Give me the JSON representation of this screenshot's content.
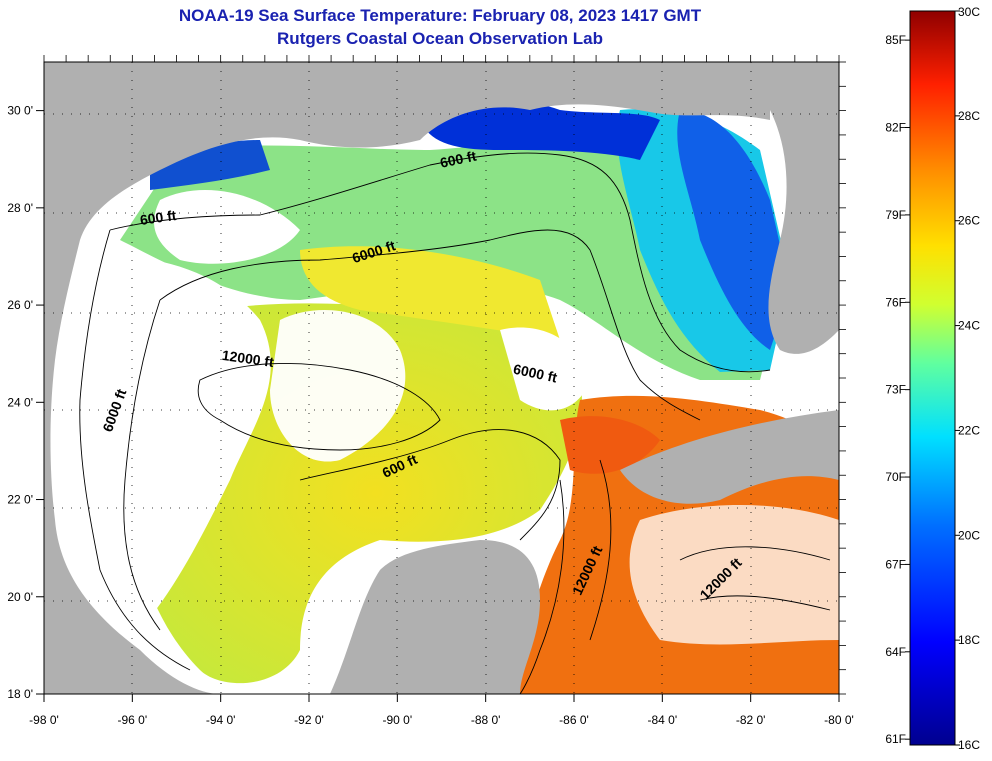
{
  "header": {
    "title": "NOAA-19 Sea Surface Temperature:  February 08, 2023 1417 GMT",
    "subtitle": "Rutgers Coastal Ocean Observation Lab"
  },
  "map": {
    "lon_ticks": [
      {
        "label": "-98 0'",
        "value": -98
      },
      {
        "label": "-96 0'",
        "value": -96
      },
      {
        "label": "-94 0'",
        "value": -94
      },
      {
        "label": "-92 0'",
        "value": -92
      },
      {
        "label": "-90 0'",
        "value": -90
      },
      {
        "label": "-88 0'",
        "value": -88
      },
      {
        "label": "-86 0'",
        "value": -86
      },
      {
        "label": "-84 0'",
        "value": -84
      },
      {
        "label": "-82 0'",
        "value": -82
      },
      {
        "label": "-80 0'",
        "value": -80
      }
    ],
    "lat_ticks": [
      {
        "label": "18 0'",
        "value": 18
      },
      {
        "label": "20 0'",
        "value": 20
      },
      {
        "label": "22 0'",
        "value": 22
      },
      {
        "label": "24 0'",
        "value": 24
      },
      {
        "label": "26 0'",
        "value": 26
      },
      {
        "label": "28 0'",
        "value": 28
      },
      {
        "label": "30 0'",
        "value": 30
      }
    ],
    "lon_range": [
      -98,
      -80
    ],
    "lat_range": [
      18,
      31
    ],
    "contour_labels": [
      {
        "text": "600 ft",
        "lon": -95.4,
        "lat": 27.7
      },
      {
        "text": "600 ft",
        "lon": -88.6,
        "lat": 28.9
      },
      {
        "text": "6000 ft",
        "lon": -90.5,
        "lat": 27.0
      },
      {
        "text": "12000 ft",
        "lon": -93.4,
        "lat": 24.8
      },
      {
        "text": "6000 ft",
        "lon": -86.9,
        "lat": 24.5
      },
      {
        "text": "6000 ft",
        "lon": -96.3,
        "lat": 23.8
      },
      {
        "text": "600 ft",
        "lon": -89.9,
        "lat": 22.6
      },
      {
        "text": "12000 ft",
        "lon": -85.6,
        "lat": 20.5
      },
      {
        "text": "12000 ft",
        "lon": -82.6,
        "lat": 20.3
      }
    ]
  },
  "colorbar": {
    "celsius": [
      {
        "label": "30C",
        "value": 30
      },
      {
        "label": "28C",
        "value": 28
      },
      {
        "label": "26C",
        "value": 26
      },
      {
        "label": "24C",
        "value": 24
      },
      {
        "label": "22C",
        "value": 22
      },
      {
        "label": "20C",
        "value": 20
      },
      {
        "label": "18C",
        "value": 18
      },
      {
        "label": "16C",
        "value": 16
      }
    ],
    "fahrenheit": [
      {
        "label": "85F",
        "value": 85
      },
      {
        "label": "82F",
        "value": 82
      },
      {
        "label": "79F",
        "value": 79
      },
      {
        "label": "76F",
        "value": 76
      },
      {
        "label": "73F",
        "value": 73
      },
      {
        "label": "70F",
        "value": 70
      },
      {
        "label": "67F",
        "value": 67
      },
      {
        "label": "64F",
        "value": 64
      },
      {
        "label": "61F",
        "value": 61
      }
    ],
    "range_c": [
      16,
      30
    ],
    "colors": [
      "#00008f",
      "#0000ff",
      "#0060ff",
      "#00c0ff",
      "#40ffbf",
      "#c0ff40",
      "#ffdf00",
      "#ff8000",
      "#ff2000",
      "#8f0000"
    ]
  }
}
